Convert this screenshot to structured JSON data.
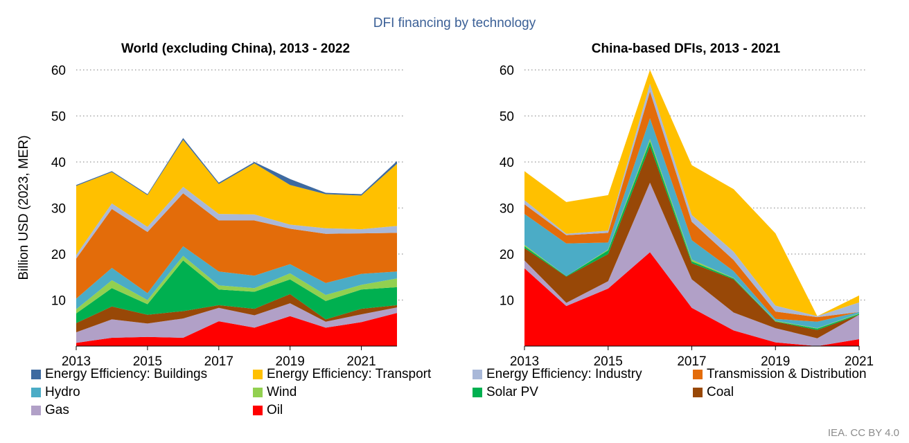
{
  "title": "DFI financing by technology",
  "ylabel": "Billion USD (2023, MER)",
  "footer": "IEA. CC BY 4.0",
  "legend": [
    {
      "name": "Energy Efficiency: Buildings",
      "color": "#3e6aa0"
    },
    {
      "name": "Energy Efficiency: Transport",
      "color": "#ffc000"
    },
    {
      "name": "Energy Efficiency: Industry",
      "color": "#a9b8d8"
    },
    {
      "name": "Transmission & Distribution",
      "color": "#e36c0a"
    },
    {
      "name": "Hydro",
      "color": "#4bacc6"
    },
    {
      "name": "Wind",
      "color": "#92d050"
    },
    {
      "name": "Solar PV",
      "color": "#00b050"
    },
    {
      "name": "Coal",
      "color": "#984807"
    },
    {
      "name": "Gas",
      "color": "#b1a0c7"
    },
    {
      "name": "Oil",
      "color": "#ff0000"
    }
  ],
  "chart_data": [
    {
      "type": "area",
      "stacked": true,
      "title": "World (excluding China), 2013 - 2022",
      "ylabel": "Billion USD (2023, MER)",
      "x": [
        2013,
        2014,
        2015,
        2016,
        2017,
        2018,
        2019,
        2020,
        2021,
        2022
      ],
      "xticks": [
        "2013",
        "2015",
        "2017",
        "2019",
        "2021"
      ],
      "yticks": [
        "10",
        "20",
        "30",
        "40",
        "50",
        "60"
      ],
      "ylim": [
        0,
        60
      ],
      "grid": "horizontal dotted",
      "series": [
        {
          "name": "Oil",
          "values": [
            0.7,
            1.8,
            2.0,
            1.8,
            5.4,
            4.0,
            6.5,
            4.0,
            5.2,
            7.2
          ]
        },
        {
          "name": "Gas",
          "values": [
            2.3,
            4.0,
            2.9,
            4.2,
            2.9,
            2.7,
            2.8,
            1.3,
            1.7,
            1.2
          ]
        },
        {
          "name": "Coal",
          "values": [
            2.0,
            2.8,
            1.9,
            1.6,
            0.6,
            1.4,
            2.0,
            0.5,
            1.2,
            0.5
          ]
        },
        {
          "name": "Solar PV",
          "values": [
            2.1,
            4.0,
            2.3,
            11.0,
            3.4,
            3.7,
            3.2,
            4.0,
            4.2,
            3.9
          ]
        },
        {
          "name": "Wind",
          "values": [
            0.9,
            1.7,
            0.9,
            1.0,
            0.9,
            0.8,
            1.3,
            1.3,
            1.0,
            1.9
          ]
        },
        {
          "name": "Hydro",
          "values": [
            2.3,
            2.7,
            1.5,
            2.1,
            3.0,
            2.7,
            2.0,
            2.6,
            2.4,
            1.5
          ]
        },
        {
          "name": "Transmission & Distribution",
          "values": [
            8.7,
            12.8,
            13.3,
            11.5,
            11.1,
            12.0,
            7.7,
            10.7,
            8.8,
            8.4
          ]
        },
        {
          "name": "Energy Efficiency: Industry",
          "values": [
            0.8,
            1.2,
            1.1,
            1.4,
            1.4,
            1.3,
            0.9,
            1.2,
            0.9,
            1.5
          ]
        },
        {
          "name": "Energy Efficiency: Transport",
          "values": [
            15.0,
            6.8,
            6.9,
            10.2,
            6.5,
            11.1,
            8.6,
            7.4,
            7.3,
            13.5
          ]
        },
        {
          "name": "Energy Efficiency: Buildings",
          "values": [
            0.2,
            0.2,
            0.2,
            0.4,
            0.3,
            0.3,
            1.3,
            0.3,
            0.3,
            0.6
          ]
        }
      ]
    },
    {
      "type": "area",
      "stacked": true,
      "title": "China-based DFIs, 2013 - 2021",
      "x": [
        2013,
        2014,
        2015,
        2016,
        2017,
        2018,
        2019,
        2020,
        2021
      ],
      "xticks": [
        "2013",
        "2015",
        "2017",
        "2019",
        "2021"
      ],
      "yticks": [
        "10",
        "20",
        "30",
        "40",
        "50",
        "60"
      ],
      "ylim": [
        0,
        60
      ],
      "grid": "horizontal dotted",
      "series": [
        {
          "name": "Oil",
          "values": [
            16.9,
            8.7,
            12.5,
            20.4,
            8.3,
            3.4,
            0.8,
            0,
            1.5
          ]
        },
        {
          "name": "Gas",
          "values": [
            1.7,
            0.7,
            1.6,
            15.1,
            6.2,
            3.9,
            3.1,
            1.7,
            5.3
          ]
        },
        {
          "name": "Coal",
          "values": [
            2.7,
            5.7,
            5.9,
            8.0,
            3.5,
            7.2,
            1.4,
            1.8,
            0
          ]
        },
        {
          "name": "Solar PV",
          "values": [
            0.4,
            0.1,
            0.8,
            1.0,
            0.4,
            0.2,
            0.1,
            0.3,
            0.2
          ]
        },
        {
          "name": "Wind",
          "values": [
            0.3,
            0,
            0.2,
            0.5,
            0.4,
            0.1,
            0.1,
            0.1,
            0.1
          ]
        },
        {
          "name": "Hydro",
          "values": [
            6.7,
            7.1,
            1.5,
            4.5,
            4.2,
            1.5,
            0.4,
            1.4,
            0.3
          ]
        },
        {
          "name": "Transmission & Distribution",
          "values": [
            2.1,
            1.8,
            2.1,
            5.8,
            4.0,
            2.4,
            1.6,
            1.0,
            0
          ]
        },
        {
          "name": "Energy Efficiency: Industry",
          "values": [
            0.9,
            0.3,
            0.5,
            1.7,
            1.5,
            1.8,
            1.3,
            0.2,
            2.1
          ]
        },
        {
          "name": "Energy Efficiency: Transport",
          "values": [
            6.3,
            6.9,
            7.7,
            3.0,
            10.8,
            13.6,
            15.7,
            0,
            1.5
          ]
        },
        {
          "name": "Energy Efficiency: Buildings",
          "values": [
            0,
            0,
            0,
            0,
            0,
            0,
            0,
            0,
            0
          ]
        }
      ]
    }
  ]
}
